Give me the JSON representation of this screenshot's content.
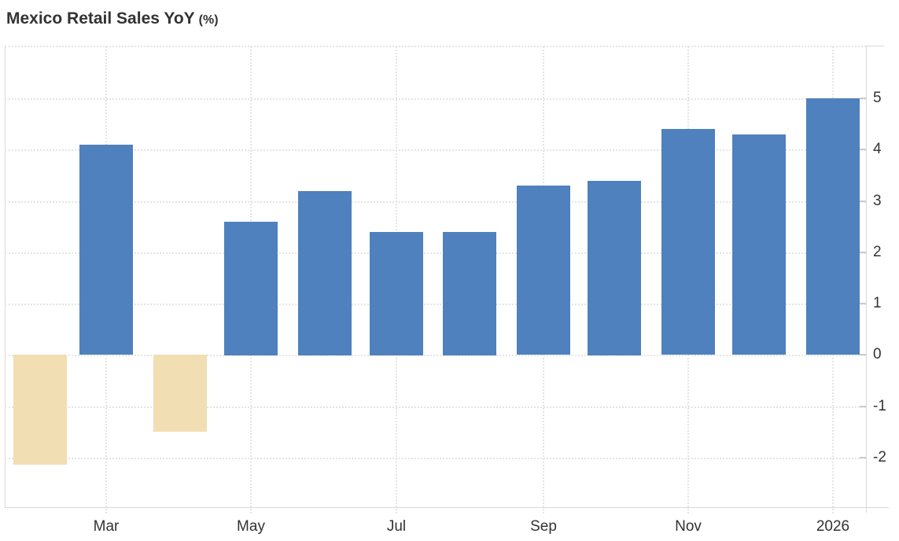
{
  "page": {
    "title": "Mexico Retail Sales YoY",
    "title_unit": "(%)"
  },
  "chart_data": {
    "type": "bar",
    "title": "Mexico Retail Sales YoY (%)",
    "categories": [
      "",
      "Mar",
      "",
      "May",
      "",
      "Jul",
      "",
      "Sep",
      "",
      "Nov",
      "",
      "2026"
    ],
    "values": [
      -2.15,
      4.1,
      -1.5,
      2.6,
      3.2,
      2.4,
      2.4,
      3.3,
      3.4,
      4.4,
      4.3,
      5.0
    ],
    "y_ticks": [
      5,
      4,
      3,
      2,
      1,
      0,
      -1,
      -2
    ],
    "ylim": [
      -2.97,
      6.03
    ],
    "xlabel": "",
    "ylabel": "",
    "legend": "none",
    "grid": "dotted",
    "y_axis_side": "right",
    "colors": {
      "positive_bar": "#4e81bd",
      "negative_bar": "#f2deb3",
      "grid_line": "#e4e4e4",
      "axis_line": "#d9d9d9",
      "text": "#333333"
    }
  }
}
